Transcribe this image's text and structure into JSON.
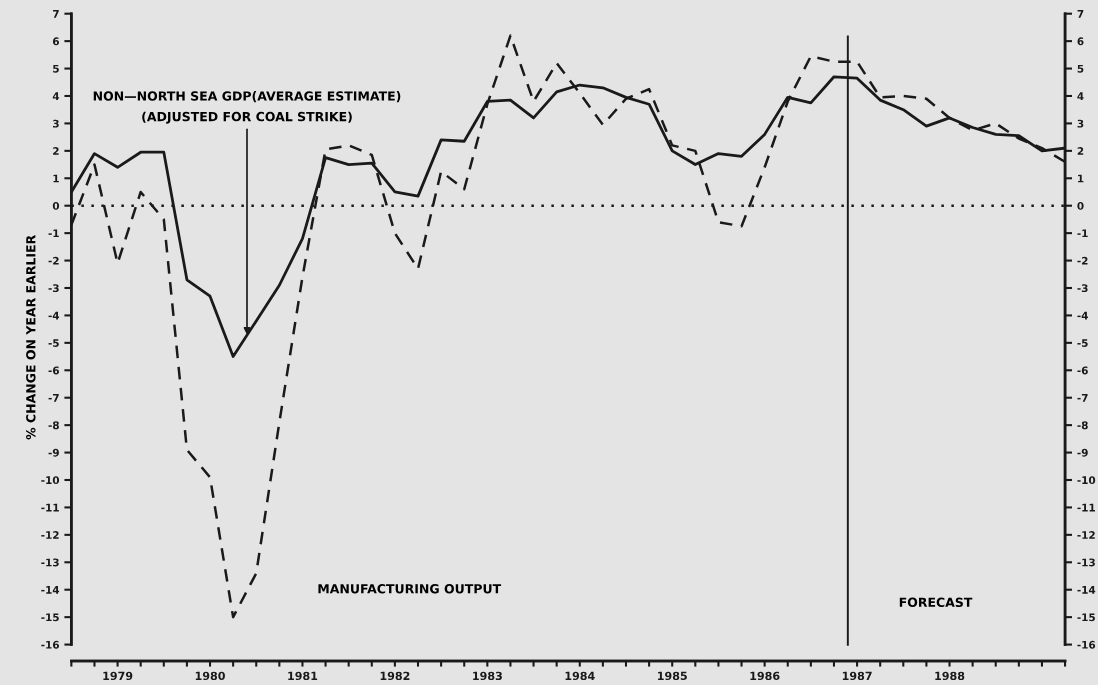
{
  "chart_data": {
    "type": "line",
    "ylabel": "% CHANGE ON YEAR EARLIER",
    "x": [
      1979.0,
      1979.25,
      1979.5,
      1979.75,
      1980.0,
      1980.25,
      1980.5,
      1980.75,
      1981.0,
      1981.25,
      1981.5,
      1981.75,
      1982.0,
      1982.25,
      1982.5,
      1982.75,
      1983.0,
      1983.25,
      1983.5,
      1983.75,
      1984.0,
      1984.25,
      1984.5,
      1984.75,
      1985.0,
      1985.25,
      1985.5,
      1985.75,
      1986.0,
      1986.25,
      1986.5,
      1986.75,
      1987.0,
      1987.25,
      1987.5,
      1987.75,
      1988.0,
      1988.25,
      1988.5,
      1988.75,
      1989.0,
      1989.25,
      1989.5,
      1989.75
    ],
    "series": [
      {
        "color": "#1a1a1a",
        "line_style": "solid",
        "values": [
          0.5,
          1.9,
          1.4,
          1.95,
          1.95,
          -2.7,
          -3.3,
          -5.5,
          -4.2,
          -2.9,
          -1.2,
          1.75,
          1.5,
          1.55,
          0.5,
          0.35,
          2.4,
          2.35,
          3.8,
          3.85,
          3.2,
          4.15,
          4.4,
          4.3,
          3.95,
          3.7,
          2.0,
          1.5,
          1.9,
          1.8,
          2.6,
          3.95,
          3.75,
          4.7,
          4.65,
          3.85,
          3.5,
          2.9,
          3.2,
          2.85,
          2.6,
          2.55,
          2.0,
          2.1
        ]
      },
      {
        "color": "#1a1a1a",
        "line_style": "dashed",
        "values": [
          -0.7,
          1.5,
          -2.1,
          0.5,
          -0.5,
          -8.9,
          -9.9,
          -15.0,
          -13.4,
          -7.9,
          -2.6,
          2.05,
          2.2,
          1.85,
          -1.0,
          -2.3,
          1.25,
          0.6,
          3.7,
          6.2,
          3.8,
          5.2,
          4.1,
          2.95,
          3.9,
          4.25,
          2.2,
          2.0,
          -0.6,
          -0.75,
          1.4,
          3.8,
          5.45,
          5.25,
          5.25,
          3.95,
          4.0,
          3.9,
          3.2,
          2.75,
          3.0,
          2.45,
          2.1,
          1.6
        ]
      }
    ],
    "xlim": [
      1979.0,
      1989.75
    ],
    "xticks": [
      {
        "value": 1979.0,
        "label": null
      },
      {
        "value": 1979.25,
        "label": null
      },
      {
        "value": 1979.5,
        "label": "1979"
      },
      {
        "value": 1979.75,
        "label": null
      },
      {
        "value": 1980.0,
        "label": null
      },
      {
        "value": 1980.25,
        "label": null
      },
      {
        "value": 1980.5,
        "label": "1980"
      },
      {
        "value": 1980.75,
        "label": null
      },
      {
        "value": 1981.0,
        "label": null
      },
      {
        "value": 1981.25,
        "label": null
      },
      {
        "value": 1981.5,
        "label": "1981"
      },
      {
        "value": 1981.75,
        "label": null
      },
      {
        "value": 1982.0,
        "label": null
      },
      {
        "value": 1982.25,
        "label": null
      },
      {
        "value": 1982.5,
        "label": "1982"
      },
      {
        "value": 1982.75,
        "label": null
      },
      {
        "value": 1983.0,
        "label": null
      },
      {
        "value": 1983.25,
        "label": null
      },
      {
        "value": 1983.5,
        "label": "1983"
      },
      {
        "value": 1983.75,
        "label": null
      },
      {
        "value": 1984.0,
        "label": null
      },
      {
        "value": 1984.25,
        "label": null
      },
      {
        "value": 1984.5,
        "label": "1984"
      },
      {
        "value": 1984.75,
        "label": null
      },
      {
        "value": 1985.0,
        "label": null
      },
      {
        "value": 1985.25,
        "label": null
      },
      {
        "value": 1985.5,
        "label": "1985"
      },
      {
        "value": 1985.75,
        "label": null
      },
      {
        "value": 1986.0,
        "label": null
      },
      {
        "value": 1986.25,
        "label": null
      },
      {
        "value": 1986.5,
        "label": "1986"
      },
      {
        "value": 1986.75,
        "label": null
      },
      {
        "value": 1987.0,
        "label": null
      },
      {
        "value": 1987.25,
        "label": null
      },
      {
        "value": 1987.5,
        "label": "1987"
      },
      {
        "value": 1987.75,
        "label": null
      },
      {
        "value": 1988.0,
        "label": null
      },
      {
        "value": 1988.25,
        "label": null
      },
      {
        "value": 1988.5,
        "label": "1988"
      },
      {
        "value": 1988.75,
        "label": null
      },
      {
        "value": 1989.0,
        "label": null
      },
      {
        "value": 1989.25,
        "label": null
      },
      {
        "value": 1989.5,
        "label": null
      },
      {
        "value": 1989.75,
        "label": null
      }
    ],
    "ylim": [
      -16.6,
      7
    ],
    "yticks": [
      -16,
      -15,
      -14,
      -13,
      -12,
      -11,
      -10,
      -9,
      -8,
      -7,
      -6,
      -5,
      -4,
      -3,
      -2,
      -1,
      0,
      1,
      2,
      3,
      4,
      5,
      6,
      7
    ],
    "y2lim": [
      -16.6,
      7
    ],
    "y2ticks": [
      -16,
      -15,
      -14,
      -13,
      -12,
      -11,
      -10,
      -9,
      -8,
      -7,
      -6,
      -5,
      -4,
      -3,
      -2,
      -1,
      0,
      1,
      2,
      3,
      4,
      5,
      6,
      7
    ],
    "ref_lines": [
      {
        "axis": "y",
        "value": 0,
        "line_style": "dotted",
        "color": "#1a1a1a"
      },
      {
        "axis": "x",
        "value": 1987.4,
        "label": "FORECAST",
        "line_style": "solid",
        "color": "#1a1a1a"
      }
    ],
    "annotations": [
      {
        "text": "NON—NORTH SEA GDP(AVERAGE ESTIMATE)\n(ADJUSTED FOR COAL STRIKE)",
        "x": 1980.9,
        "y": -4.7
      },
      "MANUFACTURING OUTPUT"
    ],
    "grid": false,
    "legend": false,
    "marker": "none"
  }
}
